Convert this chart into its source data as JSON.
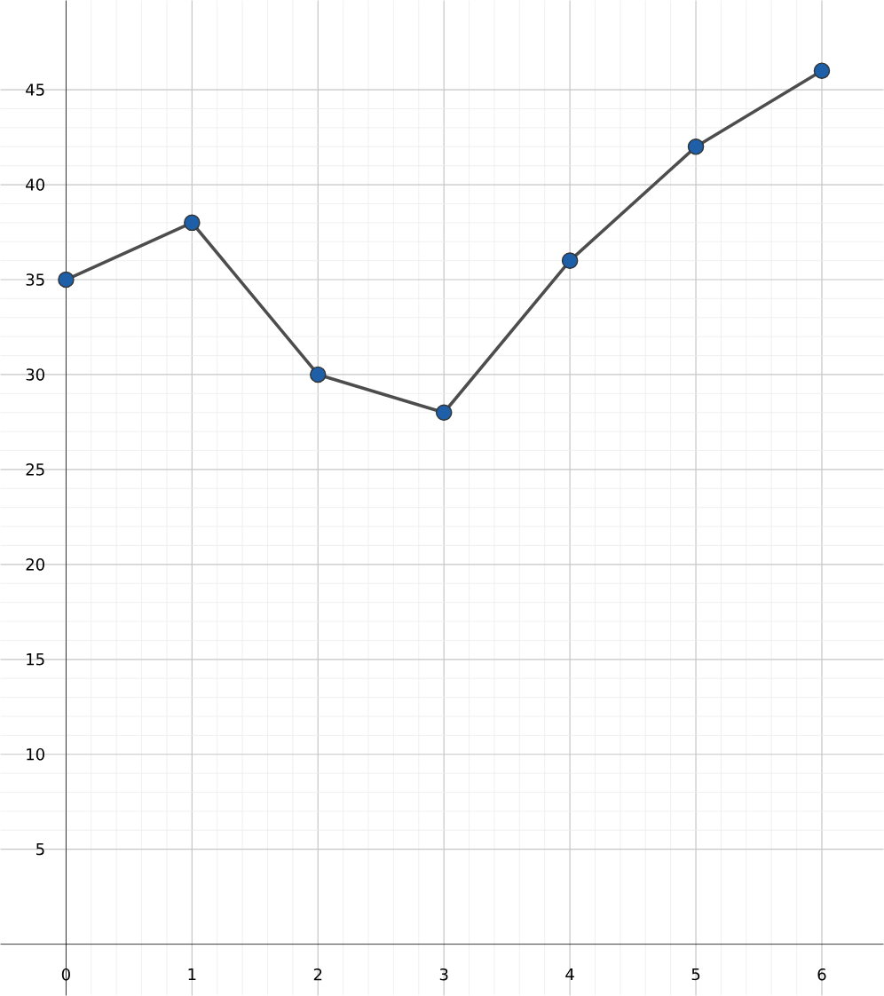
{
  "chart_data": {
    "type": "line",
    "x": [
      0,
      1,
      2,
      3,
      4,
      5,
      6
    ],
    "values": [
      35,
      38,
      30,
      28,
      36,
      42,
      46
    ],
    "color": "#4d4d4d",
    "marker": "circle",
    "line_style": "solid",
    "xlim": [
      -0.52,
      6.49
    ],
    "ylim": [
      -2.7,
      49.7
    ],
    "xticks": [
      0,
      1,
      2,
      3,
      4,
      5,
      6
    ],
    "yticks": [
      5,
      10,
      15,
      20,
      25,
      30,
      35,
      40,
      45
    ],
    "grid": true
  }
}
